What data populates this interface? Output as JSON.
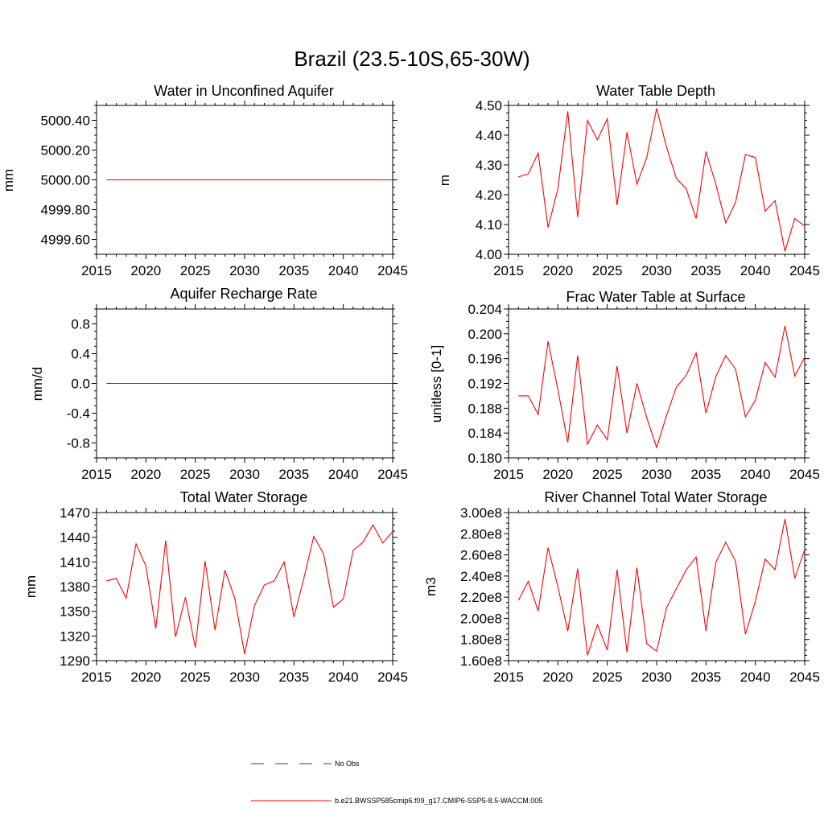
{
  "figure": {
    "title": "Brazil (23.5-10S,65-30W)",
    "line_color": "#ff0000",
    "obs_color": "#2b3a9a"
  },
  "legend": {
    "obs_label": "No Obs",
    "model_label": "b.e21.BWSSP585cmip6.f09_g17.CMIP6-SSP5-8.5-WACCM.005"
  },
  "chart_data": [
    {
      "type": "line",
      "title": "Water in Unconfined Aquifer",
      "ylabel": "mm",
      "xlim": [
        2015,
        2045
      ],
      "ylim": [
        4999.5,
        5000.5
      ],
      "x_ticks": [
        2015,
        2020,
        2025,
        2030,
        2035,
        2040,
        2045
      ],
      "y_ticks": [
        4999.6,
        4999.8,
        5000.0,
        5000.2,
        5000.4
      ],
      "y_tick_labels": [
        "4999.60",
        "4999.80",
        "5000.00",
        "5000.20",
        "5000.40"
      ],
      "x": [
        2016,
        2017,
        2018,
        2019,
        2020,
        2021,
        2022,
        2023,
        2024,
        2025,
        2026,
        2027,
        2028,
        2029,
        2030,
        2031,
        2032,
        2033,
        2034,
        2035,
        2036,
        2037,
        2038,
        2039,
        2040,
        2041,
        2042,
        2043,
        2044,
        2045
      ],
      "series": [
        {
          "name": "b.e21.BWSSP585cmip6.f09_g17.CMIP6-SSP5-8.5-WACCM.005",
          "values": [
            5000,
            5000,
            5000,
            5000,
            5000,
            5000,
            5000,
            5000,
            5000,
            5000,
            5000,
            5000,
            5000,
            5000,
            5000,
            5000,
            5000,
            5000,
            5000,
            5000,
            5000,
            5000,
            5000,
            5000,
            5000,
            5000,
            5000,
            5000,
            5000,
            5000
          ]
        }
      ]
    },
    {
      "type": "line",
      "title": "Water Table Depth",
      "ylabel": "m",
      "xlim": [
        2015,
        2045
      ],
      "ylim": [
        4.0,
        4.5
      ],
      "x_ticks": [
        2015,
        2020,
        2025,
        2030,
        2035,
        2040,
        2045
      ],
      "y_ticks": [
        4.0,
        4.1,
        4.2,
        4.3,
        4.4,
        4.5
      ],
      "y_tick_labels": [
        "4.00",
        "4.10",
        "4.20",
        "4.30",
        "4.40",
        "4.50"
      ],
      "x": [
        2016,
        2017,
        2018,
        2019,
        2020,
        2021,
        2022,
        2023,
        2024,
        2025,
        2026,
        2027,
        2028,
        2029,
        2030,
        2031,
        2032,
        2033,
        2034,
        2035,
        2036,
        2037,
        2038,
        2039,
        2040,
        2041,
        2042,
        2043,
        2044,
        2045
      ],
      "series": [
        {
          "name": "b.e21.BWSSP585cmip6.f09_g17.CMIP6-SSP5-8.5-WACCM.005",
          "values": [
            4.26,
            4.27,
            4.34,
            4.09,
            4.22,
            4.48,
            4.125,
            4.45,
            4.385,
            4.455,
            4.165,
            4.41,
            4.235,
            4.325,
            4.49,
            4.36,
            4.255,
            4.22,
            4.12,
            4.345,
            4.235,
            4.105,
            4.175,
            4.335,
            4.325,
            4.145,
            4.18,
            4.01,
            4.12,
            4.095
          ]
        }
      ]
    },
    {
      "type": "line",
      "title": "Aquifer Recharge Rate",
      "ylabel": "mm/d",
      "xlim": [
        2015,
        2045
      ],
      "ylim": [
        -1.0,
        1.0
      ],
      "x_ticks": [
        2015,
        2020,
        2025,
        2030,
        2035,
        2040,
        2045
      ],
      "y_ticks": [
        -0.8,
        -0.4,
        0.0,
        0.4,
        0.8
      ],
      "y_tick_labels": [
        "-0.8",
        "-0.4",
        "0.0",
        "0.4",
        "0.8"
      ],
      "x": [
        2016,
        2017,
        2018,
        2019,
        2020,
        2021,
        2022,
        2023,
        2024,
        2025,
        2026,
        2027,
        2028,
        2029,
        2030,
        2031,
        2032,
        2033,
        2034,
        2035,
        2036,
        2037,
        2038,
        2039,
        2040,
        2041,
        2042,
        2043,
        2044,
        2045
      ],
      "series": [
        {
          "name": "b.e21.BWSSP585cmip6.f09_g17.CMIP6-SSP5-8.5-WACCM.005",
          "values": [
            0,
            0,
            0,
            0,
            0,
            0,
            0,
            0,
            0,
            0,
            0,
            0,
            0,
            0,
            0,
            0,
            0,
            0,
            0,
            0,
            0,
            0,
            0,
            0,
            0,
            0,
            0,
            0,
            0,
            0
          ]
        }
      ]
    },
    {
      "type": "line",
      "title": "Frac Water Table at Surface",
      "ylabel": "unitless [0-1]",
      "xlim": [
        2015,
        2045
      ],
      "ylim": [
        0.18,
        0.204
      ],
      "x_ticks": [
        2015,
        2020,
        2025,
        2030,
        2035,
        2040,
        2045
      ],
      "y_ticks": [
        0.18,
        0.184,
        0.188,
        0.192,
        0.196,
        0.2,
        0.204
      ],
      "y_tick_labels": [
        "0.180",
        "0.184",
        "0.188",
        "0.192",
        "0.196",
        "0.200",
        "0.204"
      ],
      "x": [
        2016,
        2017,
        2018,
        2019,
        2020,
        2021,
        2022,
        2023,
        2024,
        2025,
        2026,
        2027,
        2028,
        2029,
        2030,
        2031,
        2032,
        2033,
        2034,
        2035,
        2036,
        2037,
        2038,
        2039,
        2040,
        2041,
        2042,
        2043,
        2044,
        2045
      ],
      "series": [
        {
          "name": "b.e21.BWSSP585cmip6.f09_g17.CMIP6-SSP5-8.5-WACCM.005",
          "values": [
            0.19,
            0.19,
            0.187,
            0.1988,
            0.191,
            0.1825,
            0.1965,
            0.1822,
            0.1853,
            0.1829,
            0.1948,
            0.184,
            0.192,
            0.1865,
            0.1817,
            0.1868,
            0.1914,
            0.1933,
            0.1969,
            0.1872,
            0.1931,
            0.1965,
            0.1943,
            0.1866,
            0.1893,
            0.1954,
            0.193,
            0.2013,
            0.1932,
            0.1962
          ]
        }
      ]
    },
    {
      "type": "line",
      "title": "Total Water Storage",
      "ylabel": "mm",
      "xlim": [
        2015,
        2045
      ],
      "ylim": [
        1290,
        1470
      ],
      "x_ticks": [
        2015,
        2020,
        2025,
        2030,
        2035,
        2040,
        2045
      ],
      "y_ticks": [
        1290,
        1320,
        1350,
        1380,
        1410,
        1440,
        1470
      ],
      "y_tick_labels": [
        "1290",
        "1320",
        "1350",
        "1380",
        "1410",
        "1440",
        "1470"
      ],
      "x": [
        2016,
        2017,
        2018,
        2019,
        2020,
        2021,
        2022,
        2023,
        2024,
        2025,
        2026,
        2027,
        2028,
        2029,
        2030,
        2031,
        2032,
        2033,
        2034,
        2035,
        2036,
        2037,
        2038,
        2039,
        2040,
        2041,
        2042,
        2043,
        2044,
        2045
      ],
      "series": [
        {
          "name": "b.e21.BWSSP585cmip6.f09_g17.CMIP6-SSP5-8.5-WACCM.005",
          "values": [
            1387,
            1390,
            1366,
            1432,
            1405,
            1329,
            1436,
            1319,
            1367,
            1306,
            1411,
            1327,
            1400,
            1366,
            1298,
            1357,
            1382,
            1387,
            1410,
            1343,
            1390,
            1441,
            1420,
            1355,
            1365,
            1424,
            1434,
            1455,
            1433,
            1447
          ]
        }
      ]
    },
    {
      "type": "line",
      "title": "River Channel Total Water Storage",
      "ylabel": "m3",
      "xlim": [
        2015,
        2045
      ],
      "ylim": [
        160000000,
        300000000
      ],
      "x_ticks": [
        2015,
        2020,
        2025,
        2030,
        2035,
        2040,
        2045
      ],
      "y_ticks": [
        160000000,
        180000000,
        200000000,
        220000000,
        240000000,
        260000000,
        280000000,
        300000000
      ],
      "y_tick_labels": [
        "1.60e8",
        "1.80e8",
        "2.00e8",
        "2.20e8",
        "2.40e8",
        "2.60e8",
        "2.80e8",
        "3.00e8"
      ],
      "x": [
        2016,
        2017,
        2018,
        2019,
        2020,
        2021,
        2022,
        2023,
        2024,
        2025,
        2026,
        2027,
        2028,
        2029,
        2030,
        2031,
        2032,
        2033,
        2034,
        2035,
        2036,
        2037,
        2038,
        2039,
        2040,
        2041,
        2042,
        2043,
        2044,
        2045
      ],
      "series": [
        {
          "name": "b.e21.BWSSP585cmip6.f09_g17.CMIP6-SSP5-8.5-WACCM.005",
          "values": [
            217000000,
            235000000,
            207000000,
            267000000,
            230000000,
            188000000,
            247000000,
            165000000,
            194000000,
            170000000,
            246000000,
            168000000,
            248000000,
            176000000,
            169000000,
            210000000,
            228000000,
            246000000,
            258000000,
            188000000,
            253000000,
            272000000,
            254000000,
            185000000,
            216000000,
            256000000,
            246000000,
            294000000,
            238000000,
            265000000
          ]
        }
      ]
    }
  ]
}
